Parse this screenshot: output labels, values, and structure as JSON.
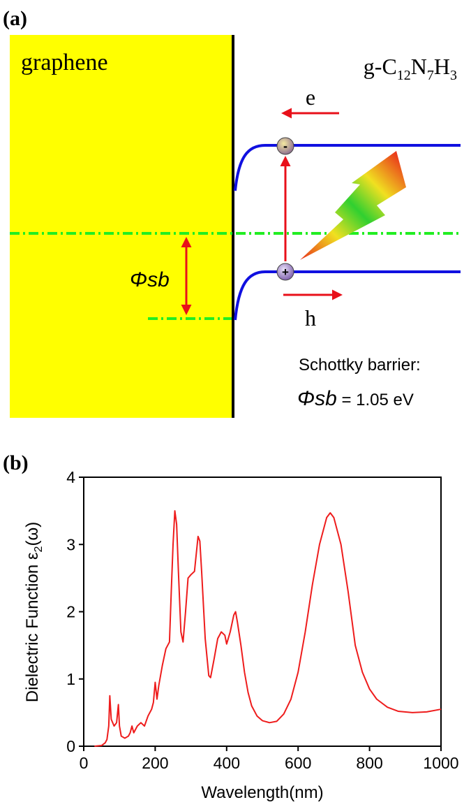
{
  "panel_a": {
    "label": "(a)",
    "left_material": "graphene",
    "right_material": [
      "g-C",
      "12",
      "N",
      "7",
      "H",
      "3"
    ],
    "electron_label": "e",
    "hole_label": "h",
    "electron_sign": "-",
    "hole_sign": "+",
    "barrier_symbol": "Φsb",
    "caption_line1": "Schottky barrier:",
    "caption_symbol": "Φsb",
    "caption_value": " = 1.05 eV"
  },
  "chart_data": {
    "type": "line",
    "panel_label": "(b)",
    "xlabel": "Wavelength(nm)",
    "ylabel": [
      "Dielectric Function ε",
      "2",
      "(ω)"
    ],
    "xlim": [
      0,
      1000
    ],
    "ylim": [
      0,
      4
    ],
    "xticks": [
      0,
      200,
      400,
      600,
      800,
      1000
    ],
    "yticks": [
      0,
      1,
      2,
      3,
      4
    ],
    "color": "#ee1c1c",
    "x": [
      30,
      50,
      60,
      65,
      70,
      73,
      77,
      85,
      92,
      97,
      100,
      105,
      115,
      125,
      130,
      135,
      140,
      150,
      160,
      170,
      180,
      190,
      195,
      200,
      205,
      210,
      220,
      230,
      240,
      245,
      250,
      255,
      260,
      265,
      272,
      278,
      285,
      292,
      300,
      310,
      320,
      325,
      330,
      340,
      350,
      355,
      365,
      375,
      385,
      395,
      400,
      410,
      420,
      425,
      430,
      440,
      450,
      460,
      470,
      485,
      500,
      520,
      540,
      560,
      580,
      600,
      620,
      640,
      660,
      680,
      690,
      700,
      720,
      740,
      760,
      780,
      800,
      820,
      850,
      880,
      920,
      960,
      1000
    ],
    "values": [
      0,
      0.01,
      0.05,
      0.1,
      0.3,
      0.75,
      0.4,
      0.3,
      0.35,
      0.62,
      0.3,
      0.15,
      0.12,
      0.15,
      0.2,
      0.3,
      0.2,
      0.3,
      0.35,
      0.3,
      0.45,
      0.55,
      0.65,
      0.95,
      0.7,
      0.9,
      1.2,
      1.45,
      1.55,
      2.3,
      3.0,
      3.5,
      3.3,
      2.6,
      1.7,
      1.55,
      2.0,
      2.5,
      2.55,
      2.6,
      3.12,
      3.05,
      2.6,
      1.6,
      1.05,
      1.02,
      1.3,
      1.6,
      1.7,
      1.65,
      1.52,
      1.7,
      1.95,
      2.0,
      1.85,
      1.5,
      1.1,
      0.8,
      0.6,
      0.45,
      0.38,
      0.35,
      0.37,
      0.48,
      0.7,
      1.1,
      1.7,
      2.4,
      3.0,
      3.4,
      3.47,
      3.4,
      3.0,
      2.3,
      1.5,
      1.1,
      0.85,
      0.7,
      0.58,
      0.52,
      0.5,
      0.51,
      0.55
    ]
  }
}
